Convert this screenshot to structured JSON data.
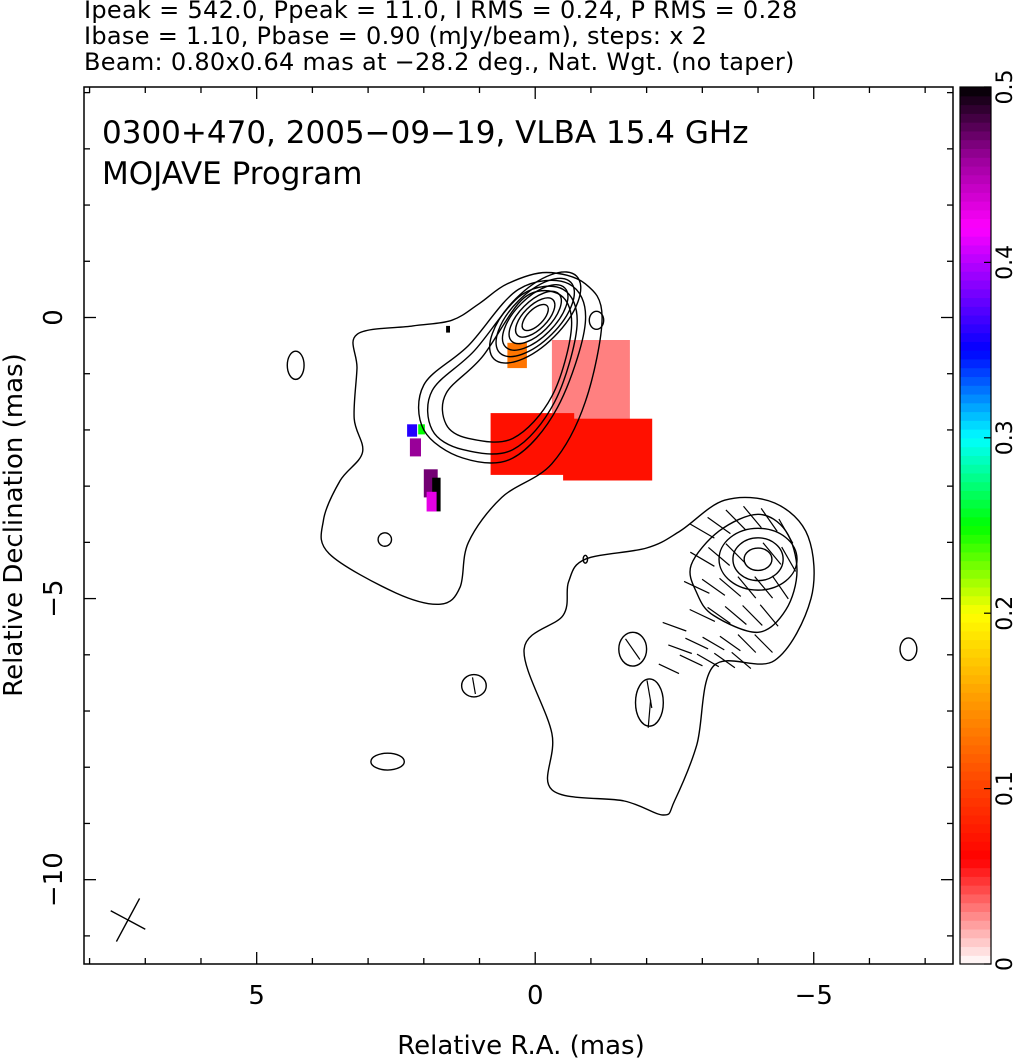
{
  "header": {
    "line1": "Ipeak = 542.0, Ppeak = 11.0, I RMS = 0.24, P RMS = 0.28",
    "line2": "Ibase = 1.10, Pbase = 0.90 (mJy/beam), steps: x 2",
    "line3": "Beam: 0.80x0.64 mas at −28.2 deg., Nat. Wgt. (no taper)"
  },
  "chart_data": {
    "type": "contour-map",
    "annotation_line1": "0300+470, 2005−09−19, VLBA 15.4 GHz",
    "annotation_line2": "MOJAVE Program",
    "xlabel": "Relative R.A. (mas)",
    "ylabel": "Relative Declination (mas)",
    "xlim": [
      8.1,
      -7.5
    ],
    "ylim": [
      -11.5,
      4.1
    ],
    "x_ticks": [
      {
        "value": 5,
        "label": "5"
      },
      {
        "value": 0,
        "label": "0"
      },
      {
        "value": -5,
        "label": "−5"
      }
    ],
    "y_ticks": [
      {
        "value": 0,
        "label": "0"
      },
      {
        "value": -5,
        "label": "−5"
      },
      {
        "value": -10,
        "label": "−10"
      }
    ],
    "colorbar": {
      "range": [
        0,
        0.5
      ],
      "ticks": [
        {
          "value": 0,
          "label": "0"
        },
        {
          "value": 0.1,
          "label": "0.1"
        },
        {
          "value": 0.2,
          "label": "0.2"
        },
        {
          "value": 0.3,
          "label": "0.3"
        },
        {
          "value": 0.4,
          "label": "0.4"
        },
        {
          "value": 0.5,
          "label": "0.5"
        }
      ],
      "colormap": [
        {
          "v": 0.0,
          "color": "#ffffff"
        },
        {
          "v": 0.06,
          "color": "#ff0000"
        },
        {
          "v": 0.1,
          "color": "#ff4000"
        },
        {
          "v": 0.15,
          "color": "#ff9900"
        },
        {
          "v": 0.2,
          "color": "#ffff00"
        },
        {
          "v": 0.25,
          "color": "#00ff00"
        },
        {
          "v": 0.3,
          "color": "#00ffff"
        },
        {
          "v": 0.35,
          "color": "#0000ff"
        },
        {
          "v": 0.42,
          "color": "#ff00ff"
        },
        {
          "v": 0.46,
          "color": "#990099"
        },
        {
          "v": 0.5,
          "color": "#000000"
        }
      ]
    },
    "core": {
      "x": 0.0,
      "y": 0.0
    },
    "outer_contour": [
      [
        3.2,
        -0.3
      ],
      [
        2.2,
        -0.15
      ],
      [
        1.5,
        -0.05
      ],
      [
        1.0,
        0.25
      ],
      [
        0.5,
        0.6
      ],
      [
        -0.2,
        0.8
      ],
      [
        -0.9,
        0.6
      ],
      [
        -1.2,
        0.0
      ],
      [
        -0.9,
        -1.5
      ],
      [
        -0.3,
        -2.6
      ],
      [
        0.6,
        -3.2
      ],
      [
        1.2,
        -4.0
      ],
      [
        1.35,
        -4.8
      ],
      [
        1.7,
        -5.1
      ],
      [
        2.5,
        -4.9
      ],
      [
        3.7,
        -4.2
      ],
      [
        3.8,
        -3.6
      ],
      [
        3.5,
        -2.9
      ],
      [
        3.1,
        -2.4
      ],
      [
        3.25,
        -1.8
      ],
      [
        3.2,
        -0.9
      ]
    ],
    "inner_contours": [
      [
        [
          2.0,
          -1.2
        ],
        [
          1.2,
          -0.5
        ],
        [
          0.3,
          0.5
        ],
        [
          -0.6,
          0.6
        ],
        [
          -0.9,
          -0.1
        ],
        [
          -0.4,
          -1.6
        ],
        [
          0.4,
          -2.5
        ],
        [
          1.3,
          -2.5
        ],
        [
          2.0,
          -2.0
        ]
      ],
      [
        [
          1.85,
          -1.3
        ],
        [
          1.1,
          -0.6
        ],
        [
          0.25,
          0.4
        ],
        [
          -0.5,
          0.5
        ],
        [
          -0.75,
          -0.15
        ],
        [
          -0.35,
          -1.5
        ],
        [
          0.4,
          -2.35
        ],
        [
          1.3,
          -2.35
        ],
        [
          1.85,
          -2.0
        ]
      ],
      [
        [
          1.6,
          -1.35
        ],
        [
          0.95,
          -0.7
        ],
        [
          0.2,
          0.35
        ],
        [
          -0.45,
          0.4
        ],
        [
          -0.65,
          -0.2
        ],
        [
          -0.3,
          -1.4
        ],
        [
          0.4,
          -2.15
        ],
        [
          1.2,
          -2.15
        ],
        [
          1.6,
          -1.9
        ]
      ]
    ],
    "core_ellipses": [
      {
        "rx": 1.05,
        "ry": 0.48
      },
      {
        "rx": 0.9,
        "ry": 0.42
      },
      {
        "rx": 0.75,
        "ry": 0.35
      },
      {
        "rx": 0.6,
        "ry": 0.28
      },
      {
        "rx": 0.45,
        "ry": 0.21
      },
      {
        "rx": 0.3,
        "ry": 0.14
      }
    ],
    "lower_outer_contour": [
      [
        -0.9,
        -4.3
      ],
      [
        -2.0,
        -4.1
      ],
      [
        -2.6,
        -3.8
      ],
      [
        -3.4,
        -3.25
      ],
      [
        -4.3,
        -3.3
      ],
      [
        -4.9,
        -3.9
      ],
      [
        -4.95,
        -5.0
      ],
      [
        -4.3,
        -6.1
      ],
      [
        -3.2,
        -6.2
      ],
      [
        -2.9,
        -7.6
      ],
      [
        -2.5,
        -8.6
      ],
      [
        -2.3,
        -8.85
      ],
      [
        -1.6,
        -8.6
      ],
      [
        -0.3,
        -8.4
      ],
      [
        -0.3,
        -7.4
      ],
      [
        0.2,
        -5.9
      ],
      [
        -0.5,
        -5.3
      ],
      [
        -0.6,
        -4.7
      ]
    ],
    "lower_mid_contour": [
      [
        -2.8,
        -4.4
      ],
      [
        -3.3,
        -3.8
      ],
      [
        -4.0,
        -3.5
      ],
      [
        -4.5,
        -3.8
      ],
      [
        -4.7,
        -4.5
      ],
      [
        -4.5,
        -5.2
      ],
      [
        -4.0,
        -5.6
      ],
      [
        -3.2,
        -5.3
      ],
      [
        -2.9,
        -4.9
      ]
    ],
    "knot": {
      "x": -4.0,
      "y": -4.3
    },
    "small_islands": [
      {
        "x": 4.3,
        "y": -0.85,
        "rx": 0.15,
        "ry": 0.25
      },
      {
        "x": -1.1,
        "y": -0.05,
        "rx": 0.13,
        "ry": 0.16
      },
      {
        "x": 2.7,
        "y": -3.95,
        "rx": 0.12,
        "ry": 0.12
      },
      {
        "x": 1.1,
        "y": -6.55,
        "rx": 0.22,
        "ry": 0.2
      },
      {
        "x": 2.65,
        "y": -7.9,
        "rx": 0.3,
        "ry": 0.15
      },
      {
        "x": -1.75,
        "y": -5.9,
        "rx": 0.25,
        "ry": 0.3
      },
      {
        "x": -2.05,
        "y": -6.85,
        "rx": 0.25,
        "ry": 0.42
      },
      {
        "x": -6.7,
        "y": -5.9,
        "rx": 0.15,
        "ry": 0.2
      },
      {
        "x": -0.9,
        "y": -4.3,
        "rx": 0.04,
        "ry": 0.07
      }
    ],
    "beam": {
      "major": 0.8,
      "minor": 0.64,
      "pa": -28.2
    },
    "polarization_patches": [
      {
        "x": -0.3,
        "y": -0.4,
        "w": 1.4,
        "h": 1.7,
        "v": 0.03
      },
      {
        "x": -0.5,
        "y": -1.8,
        "w": 1.6,
        "h": 1.1,
        "v": 0.07
      },
      {
        "x": 0.8,
        "y": -1.7,
        "w": 1.5,
        "h": 1.1,
        "v": 0.07
      },
      {
        "x": 0.5,
        "y": -0.45,
        "w": 0.35,
        "h": 0.45,
        "v": 0.13
      },
      {
        "x": 1.6,
        "y": -0.15,
        "w": 0.07,
        "h": 0.12,
        "v": 0.5
      },
      {
        "x": 2.3,
        "y": -1.9,
        "w": 0.18,
        "h": 0.22,
        "v": 0.36
      },
      {
        "x": 2.1,
        "y": -1.9,
        "w": 0.12,
        "h": 0.18,
        "v": 0.25
      },
      {
        "x": 2.25,
        "y": -2.15,
        "w": 0.2,
        "h": 0.32,
        "v": 0.46
      },
      {
        "x": 2.0,
        "y": -2.7,
        "w": 0.25,
        "h": 0.5,
        "v": 0.47
      },
      {
        "x": 1.85,
        "y": -2.85,
        "w": 0.15,
        "h": 0.6,
        "v": 0.5
      },
      {
        "x": 1.95,
        "y": -3.1,
        "w": 0.18,
        "h": 0.35,
        "v": 0.43
      }
    ],
    "evpa_vectors": [
      {
        "x": -3.0,
        "y": -3.8,
        "angle": 60,
        "len": 0.5
      },
      {
        "x": -3.3,
        "y": -3.7,
        "angle": 55,
        "len": 0.5
      },
      {
        "x": -3.6,
        "y": -3.6,
        "angle": 45,
        "len": 0.5
      },
      {
        "x": -3.9,
        "y": -3.55,
        "angle": 40,
        "len": 0.5
      },
      {
        "x": -4.2,
        "y": -3.6,
        "angle": 35,
        "len": 0.5
      },
      {
        "x": -4.5,
        "y": -3.8,
        "angle": 30,
        "len": 0.5
      },
      {
        "x": -3.0,
        "y": -4.3,
        "angle": 60,
        "len": 0.5
      },
      {
        "x": -3.3,
        "y": -4.25,
        "angle": 50,
        "len": 0.5
      },
      {
        "x": -3.6,
        "y": -4.2,
        "angle": 45,
        "len": 0.5
      },
      {
        "x": -4.25,
        "y": -4.2,
        "angle": 40,
        "len": 0.5
      },
      {
        "x": -4.55,
        "y": -4.3,
        "angle": 30,
        "len": 0.5
      },
      {
        "x": -2.9,
        "y": -4.8,
        "angle": 65,
        "len": 0.5
      },
      {
        "x": -3.2,
        "y": -4.8,
        "angle": 55,
        "len": 0.5
      },
      {
        "x": -3.5,
        "y": -4.8,
        "angle": 50,
        "len": 0.5
      },
      {
        "x": -3.8,
        "y": -4.8,
        "angle": 40,
        "len": 0.5
      },
      {
        "x": -4.1,
        "y": -4.8,
        "angle": 40,
        "len": 0.5
      },
      {
        "x": -4.4,
        "y": -4.8,
        "angle": 35,
        "len": 0.5
      },
      {
        "x": -3.0,
        "y": -5.3,
        "angle": 65,
        "len": 0.5
      },
      {
        "x": -3.3,
        "y": -5.3,
        "angle": 55,
        "len": 0.5
      },
      {
        "x": -3.6,
        "y": -5.3,
        "angle": 50,
        "len": 0.5
      },
      {
        "x": -3.9,
        "y": -5.3,
        "angle": 45,
        "len": 0.5
      },
      {
        "x": -4.2,
        "y": -5.3,
        "angle": 40,
        "len": 0.5
      },
      {
        "x": -2.5,
        "y": -5.5,
        "angle": 70,
        "len": 0.45
      },
      {
        "x": -2.6,
        "y": -5.9,
        "angle": 70,
        "len": 0.45
      },
      {
        "x": -2.9,
        "y": -5.8,
        "angle": 65,
        "len": 0.45
      },
      {
        "x": -3.2,
        "y": -5.8,
        "angle": 60,
        "len": 0.45
      },
      {
        "x": -3.5,
        "y": -5.8,
        "angle": 55,
        "len": 0.45
      },
      {
        "x": -3.8,
        "y": -5.8,
        "angle": 45,
        "len": 0.45
      },
      {
        "x": -4.1,
        "y": -5.8,
        "angle": 45,
        "len": 0.45
      },
      {
        "x": -2.8,
        "y": -6.1,
        "angle": 65,
        "len": 0.45
      },
      {
        "x": -3.1,
        "y": -6.1,
        "angle": 60,
        "len": 0.45
      },
      {
        "x": -3.4,
        "y": -6.1,
        "angle": 55,
        "len": 0.45
      },
      {
        "x": -3.7,
        "y": -6.1,
        "angle": 50,
        "len": 0.45
      },
      {
        "x": -2.4,
        "y": -6.25,
        "angle": 65,
        "len": 0.4
      },
      {
        "x": -1.75,
        "y": -5.9,
        "angle": 35,
        "len": 0.45
      },
      {
        "x": -2.05,
        "y": -6.7,
        "angle": 10,
        "len": 0.5
      },
      {
        "x": -2.05,
        "y": -7.05,
        "angle": -5,
        "len": 0.5
      },
      {
        "x": 1.1,
        "y": -6.55,
        "angle": 10,
        "len": 0.3
      }
    ]
  }
}
